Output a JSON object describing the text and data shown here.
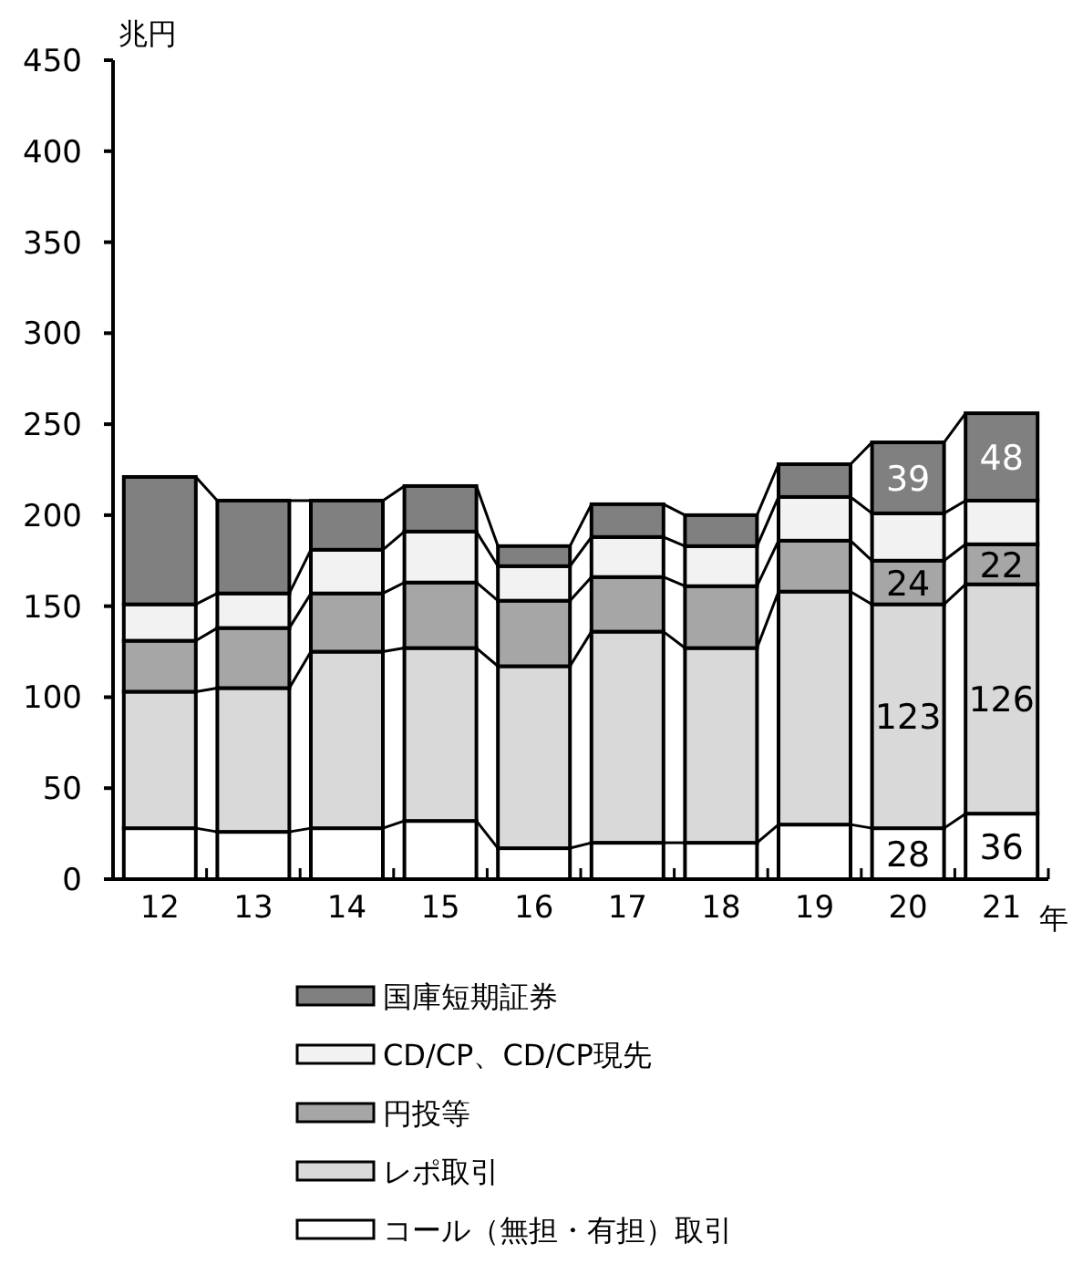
{
  "chart_data": {
    "type": "bar",
    "stacked": true,
    "ylabel": "兆円",
    "xlabel": "年",
    "categories": [
      "12",
      "13",
      "14",
      "15",
      "16",
      "17",
      "18",
      "19",
      "20",
      "21"
    ],
    "ylim": [
      0,
      450
    ],
    "yticks": [
      0,
      50,
      100,
      150,
      200,
      250,
      300,
      350,
      400,
      450
    ],
    "grid": false,
    "legend": "bottom",
    "series": [
      {
        "name": "コール（無担・有担）取引",
        "color": "#ffffff",
        "values": [
          28,
          26,
          28,
          32,
          17,
          20,
          20,
          30,
          28,
          36
        ],
        "value_labels": [
          null,
          null,
          null,
          null,
          null,
          null,
          null,
          null,
          "28",
          "36"
        ]
      },
      {
        "name": "レポ取引",
        "color": "#d9d9d9",
        "values": [
          75,
          79,
          97,
          95,
          100,
          116,
          107,
          128,
          123,
          126
        ],
        "value_labels": [
          null,
          null,
          null,
          null,
          null,
          null,
          null,
          null,
          "123",
          "126"
        ]
      },
      {
        "name": "円投等",
        "color": "#a6a6a6",
        "values": [
          28,
          33,
          32,
          36,
          36,
          30,
          34,
          28,
          24,
          22
        ],
        "value_labels": [
          null,
          null,
          null,
          null,
          null,
          null,
          null,
          null,
          "24",
          "22"
        ]
      },
      {
        "name": "CD/CP、CD/CP現先",
        "color": "#f2f2f2",
        "values": [
          20,
          19,
          24,
          28,
          19,
          22,
          22,
          24,
          26,
          24
        ]
      },
      {
        "name": "国庫短期証券",
        "color": "#808080",
        "values": [
          70,
          51,
          27,
          25,
          11,
          18,
          17,
          18,
          39,
          48
        ],
        "value_labels": [
          null,
          null,
          null,
          null,
          null,
          null,
          null,
          null,
          "39",
          "48"
        ]
      }
    ]
  }
}
